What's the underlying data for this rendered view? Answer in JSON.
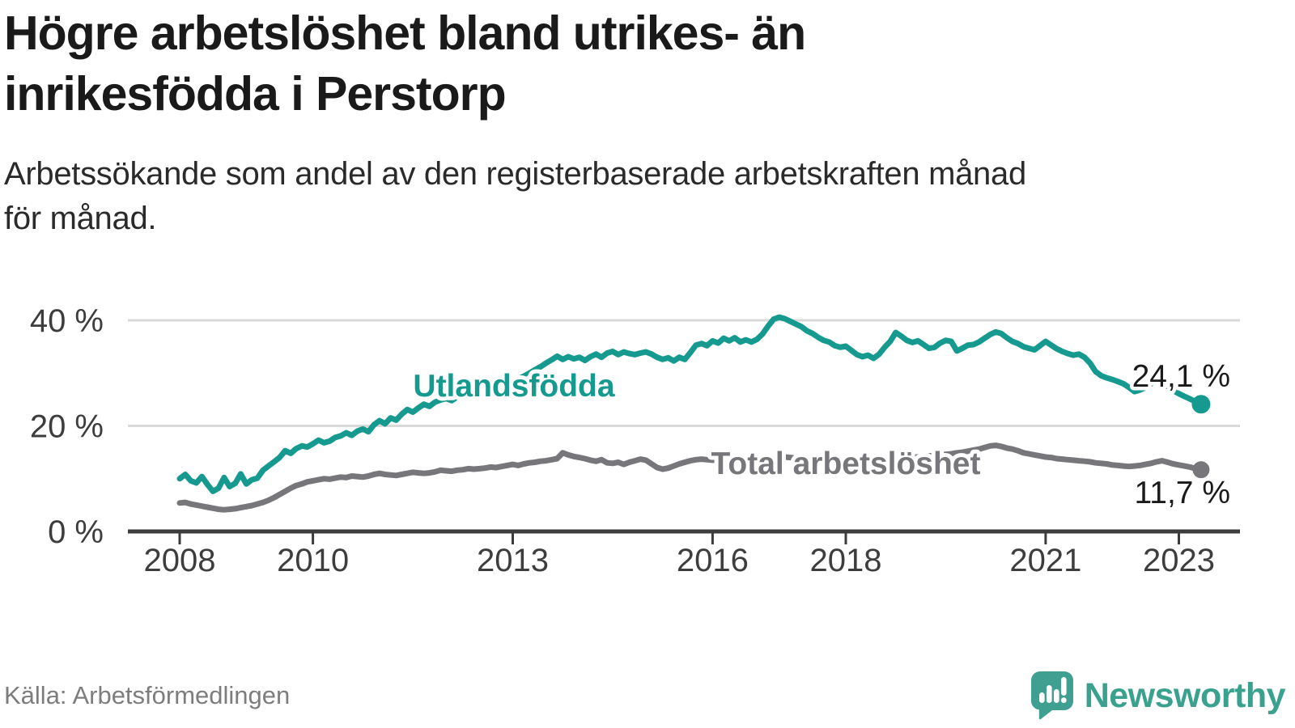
{
  "header": {
    "title_lines": [
      "Högre arbetslöshet bland utrikes- än",
      "inrikesfödda i Perstorp"
    ],
    "subtitle_lines": [
      "Arbetssökande som andel av den registerbaserade arbetskraften månad",
      "för månad."
    ]
  },
  "footer": {
    "source": "Källa: Arbetsförmedlingen",
    "brand": "Newsworthy"
  },
  "colors": {
    "teal_line": "#169a8f",
    "gray_line": "#77777b",
    "end_label_text": "#1a1a1a",
    "axis_text": "#3d3d3d",
    "axis_line": "#3c3c3c",
    "gridline": "#d9d9d9",
    "source_text": "#7d7d7d",
    "logo_teal": "#3fa092",
    "background": "#ffffff"
  },
  "chart_data": {
    "type": "line",
    "title": "Högre arbetslöshet bland utrikes- än inrikesfödda i Perstorp",
    "subtitle": "Arbetssökande som andel av den registerbaserade arbetskraften månad för månad.",
    "source": "Källa: Arbetsförmedlingen",
    "unit": "%",
    "frequency": "monthly",
    "x_start_year": 2008,
    "x_start_month": 1,
    "grid": "horizontal",
    "legend_position": "inline-labels",
    "ylim": [
      0,
      44
    ],
    "y_ticks": [
      {
        "value": 40,
        "label": "40 %"
      },
      {
        "value": 20,
        "label": "20 %"
      },
      {
        "value": 0,
        "label": "0 %"
      }
    ],
    "x_ticks": [
      {
        "year": 2008,
        "label": "2008"
      },
      {
        "year": 2010,
        "label": "2010"
      },
      {
        "year": 2013,
        "label": "2013"
      },
      {
        "year": 2016,
        "label": "2016"
      },
      {
        "year": 2018,
        "label": "2018"
      },
      {
        "year": 2021,
        "label": "2021"
      },
      {
        "year": 2023,
        "label": "2023"
      }
    ],
    "series": [
      {
        "name": "Utlandsfödda",
        "color": "#169a8f",
        "end_value": 24.1,
        "end_label": "24,1 %",
        "values": [
          10.0,
          10.8,
          9.6,
          9.2,
          10.4,
          8.9,
          7.6,
          8.2,
          10.2,
          8.5,
          9.1,
          10.9,
          9.0,
          9.8,
          10.1,
          11.6,
          12.4,
          13.2,
          14.0,
          15.3,
          14.8,
          15.7,
          16.2,
          16.0,
          16.6,
          17.3,
          16.8,
          17.1,
          17.8,
          18.1,
          18.7,
          18.2,
          19.0,
          19.4,
          18.9,
          20.2,
          21.0,
          20.4,
          21.5,
          21.1,
          22.2,
          23.1,
          22.6,
          23.4,
          24.1,
          23.7,
          24.5,
          24.9,
          25.2,
          24.8,
          25.5,
          25.9,
          26.3,
          26.0,
          26.6,
          27.0,
          27.4,
          27.1,
          27.7,
          28.1,
          28.4,
          28.9,
          29.4,
          30.0,
          30.6,
          31.2,
          31.9,
          32.5,
          33.2,
          32.6,
          33.1,
          32.7,
          33.0,
          32.4,
          33.1,
          33.6,
          33.0,
          33.8,
          34.1,
          33.5,
          34.0,
          33.7,
          33.5,
          33.8,
          34.0,
          33.6,
          33.0,
          32.6,
          32.9,
          32.3,
          33.0,
          32.6,
          33.9,
          35.3,
          35.6,
          35.2,
          36.1,
          35.7,
          36.6,
          36.1,
          36.7,
          35.9,
          36.3,
          35.9,
          36.4,
          37.4,
          38.9,
          40.2,
          40.6,
          40.3,
          39.8,
          39.3,
          38.8,
          38.0,
          37.5,
          36.8,
          36.2,
          35.9,
          35.2,
          34.9,
          35.1,
          34.3,
          33.5,
          33.1,
          33.4,
          32.8,
          33.6,
          34.9,
          36.0,
          37.7,
          37.0,
          36.2,
          35.8,
          36.1,
          35.4,
          34.7,
          34.9,
          35.7,
          36.2,
          36.0,
          34.2,
          34.7,
          35.3,
          35.4,
          35.9,
          36.6,
          37.3,
          37.8,
          37.5,
          36.7,
          36.0,
          35.6,
          35.0,
          34.7,
          34.4,
          35.2,
          36.0,
          35.3,
          34.6,
          34.1,
          33.7,
          33.4,
          33.6,
          33.0,
          31.9,
          30.3,
          29.5,
          29.1,
          28.8,
          28.4,
          28.0,
          27.3,
          26.5,
          26.8,
          27.3,
          28.0,
          28.8,
          28.3,
          27.4,
          26.7,
          26.1,
          25.6,
          25.1,
          24.6,
          24.1
        ]
      },
      {
        "name": "Total arbetslöshet",
        "color": "#77777b",
        "end_value": 11.7,
        "end_label": "11,7 %",
        "values": [
          5.4,
          5.5,
          5.2,
          5.0,
          4.8,
          4.6,
          4.4,
          4.2,
          4.1,
          4.2,
          4.3,
          4.5,
          4.7,
          4.9,
          5.2,
          5.5,
          5.9,
          6.4,
          7.0,
          7.6,
          8.2,
          8.7,
          9.0,
          9.4,
          9.6,
          9.8,
          10.0,
          9.9,
          10.1,
          10.3,
          10.2,
          10.5,
          10.4,
          10.3,
          10.5,
          10.8,
          11.0,
          10.8,
          10.7,
          10.6,
          10.8,
          11.0,
          11.2,
          11.1,
          11.0,
          11.1,
          11.3,
          11.6,
          11.5,
          11.4,
          11.6,
          11.7,
          11.9,
          11.8,
          11.9,
          12.0,
          12.2,
          12.1,
          12.3,
          12.5,
          12.7,
          12.5,
          12.8,
          13.0,
          13.1,
          13.3,
          13.4,
          13.6,
          13.8,
          14.9,
          14.5,
          14.2,
          14.0,
          13.8,
          13.5,
          13.3,
          13.6,
          13.0,
          12.9,
          13.1,
          12.7,
          13.1,
          13.4,
          13.7,
          13.5,
          12.8,
          12.1,
          11.8,
          12.0,
          12.4,
          12.8,
          13.1,
          13.4,
          13.6,
          13.7,
          13.6,
          13.5,
          13.5,
          13.6,
          13.7,
          13.8,
          13.7,
          13.7,
          13.8,
          13.9,
          13.9,
          14.0,
          14.0,
          14.1,
          14.1,
          14.0,
          13.9,
          13.9,
          13.8,
          13.8,
          13.7,
          13.7,
          13.6,
          13.6,
          13.5,
          13.5,
          13.5,
          13.6,
          13.6,
          13.7,
          13.7,
          13.8,
          13.8,
          13.9,
          13.9,
          14.0,
          14.0,
          14.1,
          14.1,
          14.2,
          14.3,
          14.4,
          14.5,
          14.6,
          14.7,
          14.9,
          15.0,
          15.2,
          15.4,
          15.6,
          15.9,
          16.2,
          16.3,
          16.1,
          15.8,
          15.6,
          15.3,
          14.9,
          14.7,
          14.5,
          14.3,
          14.1,
          14.0,
          13.8,
          13.7,
          13.6,
          13.5,
          13.4,
          13.3,
          13.2,
          13.0,
          12.9,
          12.8,
          12.6,
          12.5,
          12.4,
          12.3,
          12.4,
          12.5,
          12.7,
          12.9,
          13.2,
          13.4,
          13.1,
          12.8,
          12.6,
          12.4,
          12.2,
          11.9,
          11.7
        ]
      }
    ]
  }
}
